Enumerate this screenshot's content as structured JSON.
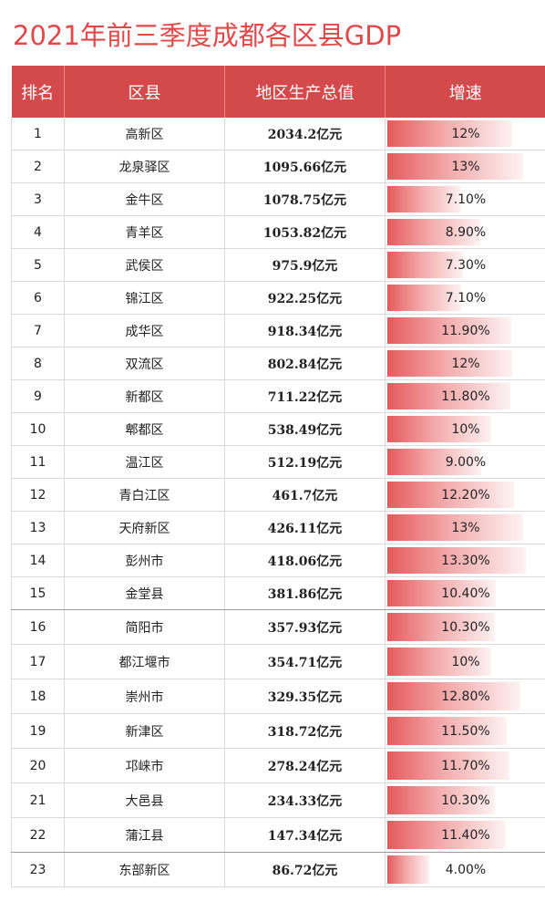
{
  "title": "2021年前三季度成都各区县GDP",
  "table": {
    "headers": [
      "排名",
      "区县",
      "地区生产总值",
      "增速"
    ],
    "rows": [
      {
        "rank": "1",
        "county": "高新区",
        "gdp": "2034.2亿元",
        "growth": "12%",
        "growth_value": 12.0
      },
      {
        "rank": "2",
        "county": "龙泉驿区",
        "gdp": "1095.66亿元",
        "growth": "13%",
        "growth_value": 13.0
      },
      {
        "rank": "3",
        "county": "金牛区",
        "gdp": "1078.75亿元",
        "growth": "7.10%",
        "growth_value": 7.1
      },
      {
        "rank": "4",
        "county": "青羊区",
        "gdp": "1053.82亿元",
        "growth": "8.90%",
        "growth_value": 8.9
      },
      {
        "rank": "5",
        "county": "武侯区",
        "gdp": "975.9亿元",
        "growth": "7.30%",
        "growth_value": 7.3
      },
      {
        "rank": "6",
        "county": "锦江区",
        "gdp": "922.25亿元",
        "growth": "7.10%",
        "growth_value": 7.1
      },
      {
        "rank": "7",
        "county": "成华区",
        "gdp": "918.34亿元",
        "growth": "11.90%",
        "growth_value": 11.9
      },
      {
        "rank": "8",
        "county": "双流区",
        "gdp": "802.84亿元",
        "growth": "12%",
        "growth_value": 12.0
      },
      {
        "rank": "9",
        "county": "新都区",
        "gdp": "711.22亿元",
        "growth": "11.80%",
        "growth_value": 11.8
      },
      {
        "rank": "10",
        "county": "郫都区",
        "gdp": "538.49亿元",
        "growth": "10%",
        "growth_value": 10.0
      },
      {
        "rank": "11",
        "county": "温江区",
        "gdp": "512.19亿元",
        "growth": "9.00%",
        "growth_value": 9.0
      },
      {
        "rank": "12",
        "county": "青白江区",
        "gdp": "461.7亿元",
        "growth": "12.20%",
        "growth_value": 12.2
      },
      {
        "rank": "13",
        "county": "天府新区",
        "gdp": "426.11亿元",
        "growth": "13%",
        "growth_value": 13.0
      },
      {
        "rank": "14",
        "county": "彭州市",
        "gdp": "418.06亿元",
        "growth": "13.30%",
        "growth_value": 13.3
      },
      {
        "rank": "15",
        "county": "金堂县",
        "gdp": "381.86亿元",
        "growth": "10.40%",
        "growth_value": 10.4
      },
      {
        "rank": "16",
        "county": "简阳市",
        "gdp": "357.93亿元",
        "growth": "10.30%",
        "growth_value": 10.3
      },
      {
        "rank": "17",
        "county": "都江堰市",
        "gdp": "354.71亿元",
        "growth": "10%",
        "growth_value": 10.0
      },
      {
        "rank": "18",
        "county": "崇州市",
        "gdp": "329.35亿元",
        "growth": "12.80%",
        "growth_value": 12.8
      },
      {
        "rank": "19",
        "county": "新津区",
        "gdp": "318.72亿元",
        "growth": "11.50%",
        "growth_value": 11.5
      },
      {
        "rank": "20",
        "county": "邛崃市",
        "gdp": "278.24亿元",
        "growth": "11.70%",
        "growth_value": 11.7
      },
      {
        "rank": "21",
        "county": "大邑县",
        "gdp": "234.33亿元",
        "growth": "10.30%",
        "growth_value": 10.3
      },
      {
        "rank": "22",
        "county": "蒲江县",
        "gdp": "147.34亿元",
        "growth": "11.40%",
        "growth_value": 11.4
      },
      {
        "rank": "23",
        "county": "东部新区",
        "gdp": "86.72亿元",
        "growth": "4.00%",
        "growth_value": 4.0
      }
    ]
  },
  "colors": {
    "title": "#e0484a",
    "header_bg": "#d4494b",
    "bar_start": "#e55a5c",
    "bar_end": "#fdf2f2"
  }
}
